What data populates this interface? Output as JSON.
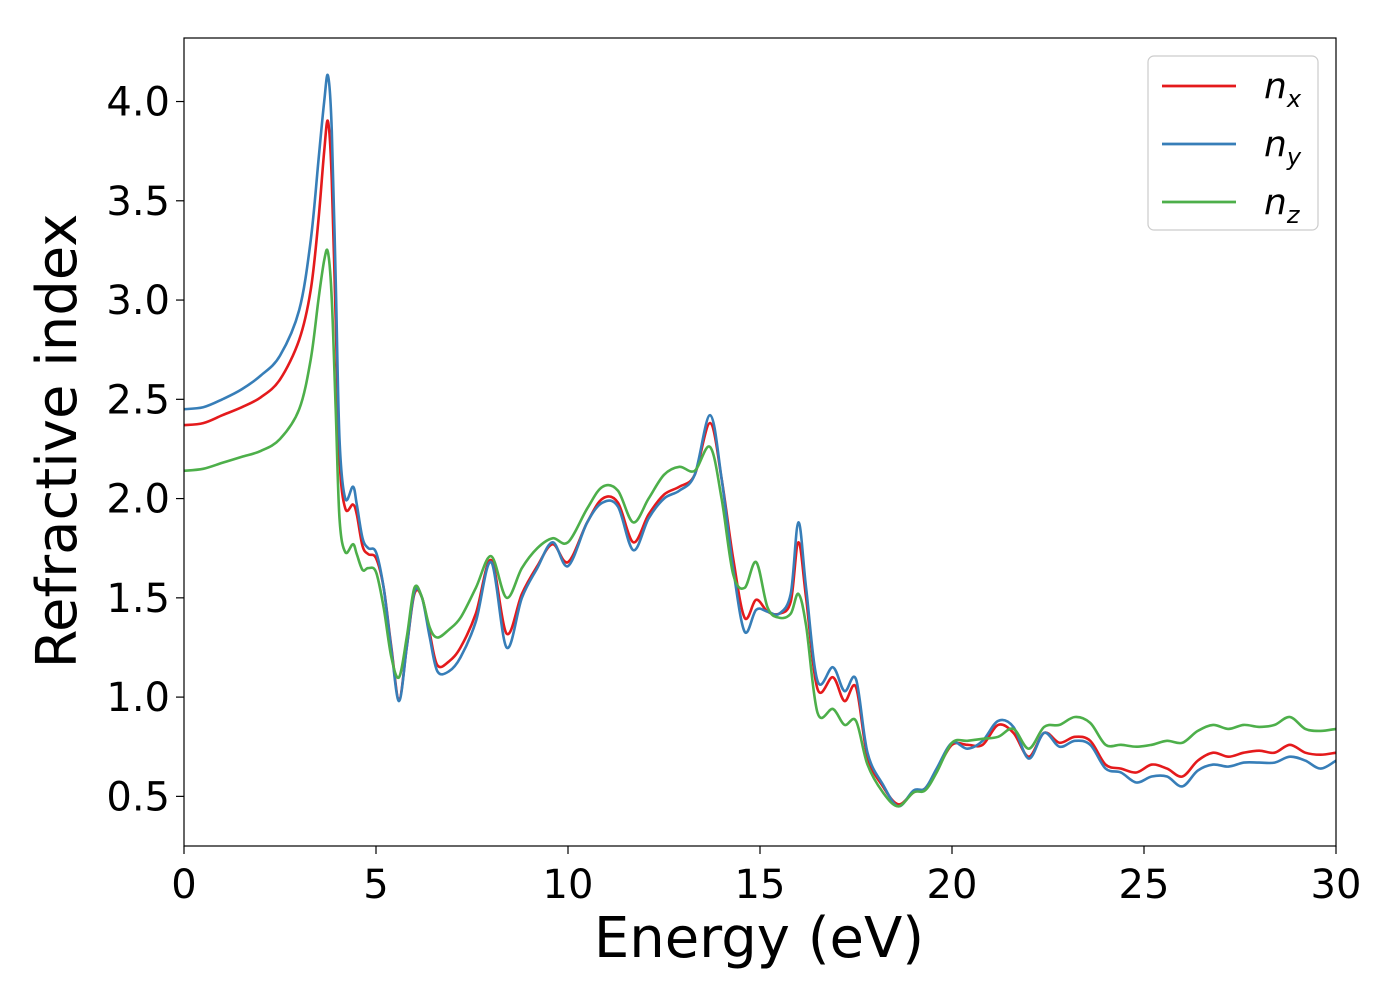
{
  "chart_data": {
    "type": "line",
    "title": "",
    "xlabel": "Energy (eV)",
    "ylabel": "Refractive index",
    "xlim": [
      0,
      30
    ],
    "ylim": [
      0.25,
      4.32
    ],
    "xticks": [
      0,
      5,
      10,
      15,
      20,
      25,
      30
    ],
    "xtick_labels": [
      "0",
      "5",
      "10",
      "15",
      "20",
      "25",
      "30"
    ],
    "yticks": [
      0.5,
      1.0,
      1.5,
      2.0,
      2.5,
      3.0,
      3.5,
      4.0
    ],
    "ytick_labels": [
      "0.5",
      "1.0",
      "1.5",
      "2.0",
      "2.5",
      "3.0",
      "3.5",
      "4.0"
    ],
    "grid": false,
    "legend_position": "top-right",
    "series": [
      {
        "name": "n_x",
        "label_base": "n",
        "label_sub": "x",
        "color": "#e41a1c",
        "x": [
          0,
          0.5,
          1,
          1.5,
          2,
          2.5,
          3,
          3.3,
          3.5,
          3.65,
          3.75,
          3.85,
          3.95,
          4.05,
          4.2,
          4.4,
          4.5,
          4.65,
          4.8,
          5,
          5.2,
          5.4,
          5.6,
          5.8,
          6,
          6.2,
          6.4,
          6.6,
          6.9,
          7.2,
          7.6,
          8,
          8.4,
          8.8,
          9.2,
          9.6,
          10,
          10.5,
          10.9,
          11.3,
          11.7,
          12.1,
          12.5,
          12.9,
          13.3,
          13.7,
          14,
          14.3,
          14.6,
          14.9,
          15.2,
          15.5,
          15.8,
          16,
          16.2,
          16.5,
          16.9,
          17.2,
          17.5,
          17.8,
          18.2,
          18.6,
          19,
          19.3,
          19.6,
          20,
          20.4,
          20.8,
          21.2,
          21.6,
          22,
          22.4,
          22.8,
          23.2,
          23.6,
          24,
          24.4,
          24.8,
          25.2,
          25.6,
          26,
          26.4,
          26.8,
          27.2,
          27.6,
          28,
          28.4,
          28.8,
          29.2,
          29.6,
          30
        ],
        "y": [
          2.37,
          2.38,
          2.42,
          2.46,
          2.51,
          2.6,
          2.8,
          3.05,
          3.4,
          3.75,
          3.9,
          3.6,
          2.9,
          2.2,
          1.95,
          1.97,
          1.92,
          1.76,
          1.72,
          1.7,
          1.55,
          1.25,
          0.99,
          1.25,
          1.52,
          1.5,
          1.32,
          1.16,
          1.18,
          1.25,
          1.42,
          1.69,
          1.32,
          1.52,
          1.66,
          1.77,
          1.68,
          1.88,
          2.0,
          1.98,
          1.78,
          1.92,
          2.02,
          2.06,
          2.12,
          2.38,
          2.1,
          1.7,
          1.4,
          1.49,
          1.43,
          1.42,
          1.48,
          1.78,
          1.5,
          1.04,
          1.1,
          0.98,
          1.05,
          0.7,
          0.55,
          0.46,
          0.52,
          0.54,
          0.63,
          0.76,
          0.76,
          0.76,
          0.86,
          0.82,
          0.7,
          0.82,
          0.77,
          0.8,
          0.78,
          0.66,
          0.64,
          0.62,
          0.66,
          0.64,
          0.6,
          0.68,
          0.72,
          0.7,
          0.72,
          0.73,
          0.72,
          0.76,
          0.72,
          0.71,
          0.72
        ]
      },
      {
        "name": "n_y",
        "label_base": "n",
        "label_sub": "y",
        "color": "#377eb8",
        "x": [
          0,
          0.5,
          1,
          1.5,
          2,
          2.5,
          3,
          3.3,
          3.5,
          3.65,
          3.75,
          3.85,
          3.95,
          4.05,
          4.2,
          4.4,
          4.5,
          4.65,
          4.8,
          5,
          5.2,
          5.4,
          5.6,
          5.8,
          6,
          6.2,
          6.4,
          6.6,
          6.9,
          7.2,
          7.6,
          8,
          8.4,
          8.8,
          9.2,
          9.6,
          10,
          10.5,
          10.9,
          11.3,
          11.7,
          12.1,
          12.5,
          12.9,
          13.3,
          13.7,
          14,
          14.3,
          14.6,
          14.9,
          15.2,
          15.5,
          15.8,
          16,
          16.2,
          16.5,
          16.9,
          17.2,
          17.5,
          17.8,
          18.2,
          18.6,
          19,
          19.3,
          19.6,
          20,
          20.4,
          20.8,
          21.2,
          21.6,
          22,
          22.4,
          22.8,
          23.2,
          23.6,
          24,
          24.4,
          24.8,
          25.2,
          25.6,
          26,
          26.4,
          26.8,
          27.2,
          27.6,
          28,
          28.4,
          28.8,
          29.2,
          29.6,
          30
        ],
        "y": [
          2.45,
          2.46,
          2.5,
          2.55,
          2.62,
          2.72,
          2.95,
          3.3,
          3.7,
          4.0,
          4.13,
          3.85,
          3.1,
          2.3,
          2.0,
          2.06,
          1.97,
          1.8,
          1.75,
          1.73,
          1.55,
          1.24,
          0.98,
          1.25,
          1.53,
          1.5,
          1.3,
          1.13,
          1.13,
          1.2,
          1.38,
          1.68,
          1.25,
          1.5,
          1.65,
          1.78,
          1.66,
          1.88,
          1.98,
          1.96,
          1.74,
          1.9,
          2.0,
          2.04,
          2.12,
          2.42,
          2.1,
          1.65,
          1.33,
          1.44,
          1.43,
          1.42,
          1.52,
          1.88,
          1.55,
          1.08,
          1.15,
          1.03,
          1.09,
          0.72,
          0.56,
          0.45,
          0.53,
          0.54,
          0.64,
          0.77,
          0.74,
          0.78,
          0.88,
          0.85,
          0.69,
          0.82,
          0.75,
          0.78,
          0.76,
          0.64,
          0.62,
          0.57,
          0.6,
          0.6,
          0.55,
          0.63,
          0.66,
          0.65,
          0.67,
          0.67,
          0.67,
          0.7,
          0.68,
          0.64,
          0.68
        ]
      },
      {
        "name": "n_z",
        "label_base": "n",
        "label_sub": "z",
        "color": "#4daf4a",
        "x": [
          0,
          0.5,
          1,
          1.5,
          2,
          2.5,
          3,
          3.3,
          3.5,
          3.65,
          3.75,
          3.85,
          3.95,
          4.05,
          4.2,
          4.4,
          4.5,
          4.65,
          4.8,
          5,
          5.2,
          5.4,
          5.6,
          5.8,
          6,
          6.2,
          6.4,
          6.6,
          6.9,
          7.2,
          7.6,
          8,
          8.4,
          8.8,
          9.2,
          9.6,
          10,
          10.5,
          10.9,
          11.3,
          11.7,
          12.1,
          12.5,
          12.9,
          13.3,
          13.7,
          14,
          14.3,
          14.6,
          14.9,
          15.2,
          15.5,
          15.8,
          16,
          16.2,
          16.5,
          16.9,
          17.2,
          17.5,
          17.8,
          18.2,
          18.6,
          19,
          19.3,
          19.6,
          20,
          20.4,
          20.8,
          21.2,
          21.6,
          22,
          22.4,
          22.8,
          23.2,
          23.6,
          24,
          24.4,
          24.8,
          25.2,
          25.6,
          26,
          26.4,
          26.8,
          27.2,
          27.6,
          28,
          28.4,
          28.8,
          29.2,
          29.6,
          30
        ],
        "y": [
          2.14,
          2.15,
          2.18,
          2.21,
          2.24,
          2.3,
          2.45,
          2.7,
          3.0,
          3.2,
          3.24,
          3.0,
          2.45,
          1.9,
          1.73,
          1.77,
          1.72,
          1.64,
          1.65,
          1.63,
          1.45,
          1.2,
          1.1,
          1.3,
          1.55,
          1.5,
          1.35,
          1.3,
          1.34,
          1.4,
          1.55,
          1.71,
          1.5,
          1.65,
          1.75,
          1.8,
          1.78,
          1.95,
          2.06,
          2.04,
          1.88,
          2.0,
          2.12,
          2.16,
          2.14,
          2.26,
          2.0,
          1.62,
          1.55,
          1.68,
          1.45,
          1.4,
          1.42,
          1.52,
          1.36,
          0.92,
          0.94,
          0.86,
          0.88,
          0.66,
          0.52,
          0.45,
          0.52,
          0.53,
          0.62,
          0.77,
          0.78,
          0.79,
          0.8,
          0.84,
          0.74,
          0.85,
          0.86,
          0.9,
          0.87,
          0.76,
          0.76,
          0.75,
          0.76,
          0.78,
          0.77,
          0.83,
          0.86,
          0.84,
          0.86,
          0.85,
          0.86,
          0.9,
          0.84,
          0.83,
          0.84
        ]
      }
    ]
  }
}
